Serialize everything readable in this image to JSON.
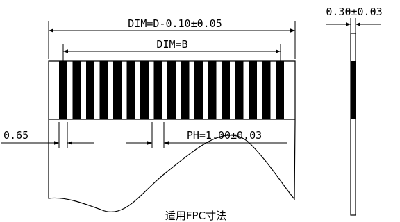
{
  "front_view": {
    "overall_label": "DIM=D-0.10±0.05",
    "inner_label": "DIM=B",
    "edge_label": "0.65",
    "pitch_label": "PH=1.00±0.03",
    "pin_count": 17
  },
  "side_view": {
    "thickness_label": "0.30±0.03"
  },
  "caption": "适用FPC寸法"
}
